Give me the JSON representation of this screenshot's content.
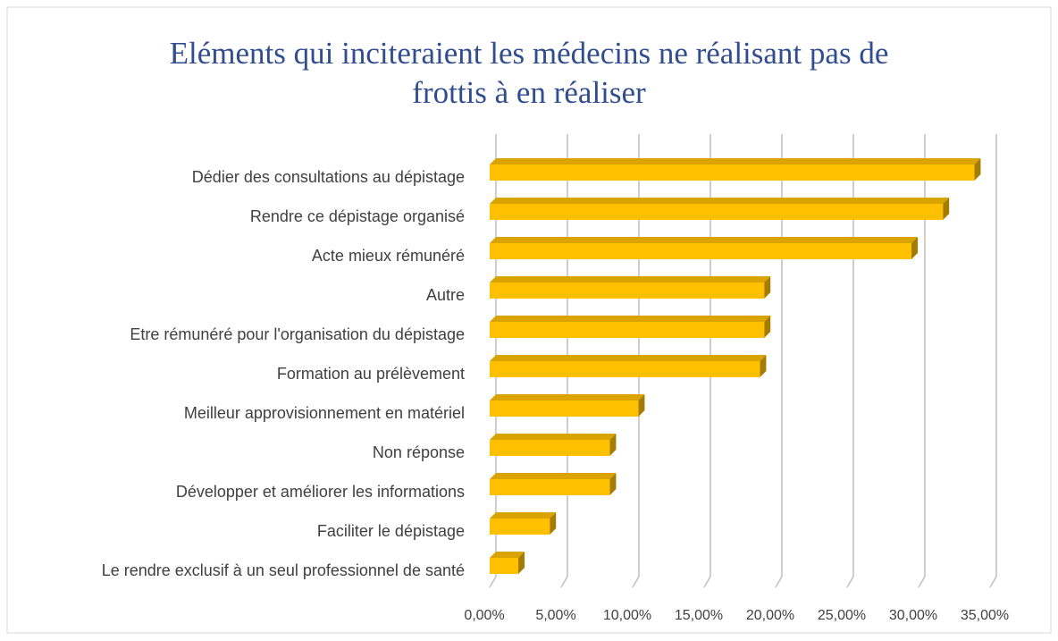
{
  "chart_data": {
    "type": "barh",
    "title": "Eléments qui inciteraient les médecins ne réalisant pas de frottis à en réaliser",
    "categories": [
      "Dédier des consultations au dépistage",
      "Rendre ce dépistage organisé",
      "Acte mieux rémunéré",
      "Autre",
      "Etre rémunéré pour l'organisation du dépistage",
      "Formation au prélèvement",
      "Meilleur approvisionnement en matériel",
      "Non réponse",
      "Développer et améliorer les informations",
      "Faciliter le dépistage",
      "Le rendre exclusif à un seul professionnel de santé"
    ],
    "values": [
      33.9,
      31.7,
      29.5,
      19.2,
      19.2,
      18.9,
      10.4,
      8.4,
      8.4,
      4.2,
      2.0
    ],
    "color": "#ffc000",
    "xlim": [
      0,
      35
    ],
    "xticks": [
      {
        "value": 0,
        "label": "0,00%"
      },
      {
        "value": 5,
        "label": "5,00%"
      },
      {
        "value": 10,
        "label": "10,00%"
      },
      {
        "value": 15,
        "label": "15,00%"
      },
      {
        "value": 20,
        "label": "20,00%"
      },
      {
        "value": 25,
        "label": "25,00%"
      },
      {
        "value": 30,
        "label": "30,00%"
      },
      {
        "value": 35,
        "label": "35,00%"
      }
    ],
    "grid": true
  }
}
